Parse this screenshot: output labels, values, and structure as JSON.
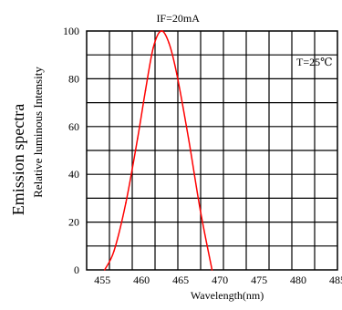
{
  "chart_data": {
    "type": "line",
    "title": "IF=20mA",
    "annotation": "T=25℃",
    "ylabel_outer": "Emission spectra",
    "ylabel_inner": "Relative luminous Intensity",
    "xlabel": "Wavelength(nm)",
    "xlim": [
      453,
      485
    ],
    "ylim": [
      0,
      100
    ],
    "xticks": [
      455,
      460,
      465,
      470,
      475,
      480,
      485
    ],
    "yticks": [
      0,
      20,
      40,
      60,
      80,
      100
    ],
    "grid": true,
    "series": [
      {
        "color": "#ff0000",
        "x": [
          455.3,
          456.5,
          458.0,
          459.5,
          460.5,
          461.5,
          462.5,
          463.5,
          464.5,
          466.0,
          467.5,
          469.0
        ],
        "y": [
          0,
          8,
          28,
          55,
          75,
          93,
          100,
          95,
          82,
          55,
          25,
          0
        ]
      }
    ]
  }
}
